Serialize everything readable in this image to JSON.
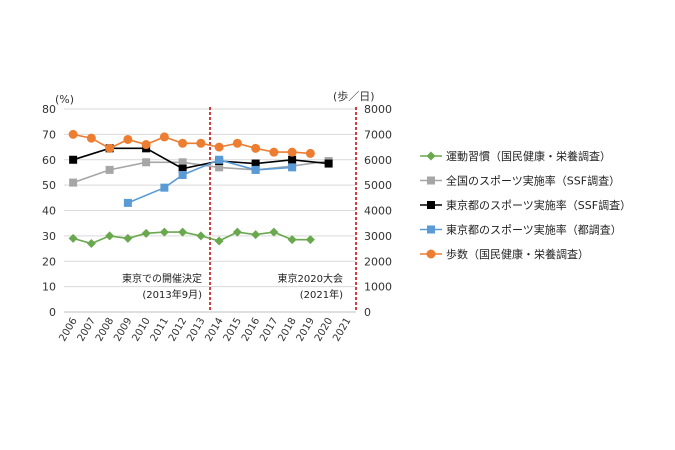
{
  "chart_data": {
    "type": "line",
    "title": "",
    "left_axis": {
      "unit_label": "(%)",
      "ylim": [
        0,
        80
      ],
      "ticks": [
        "0",
        "10",
        "20",
        "30",
        "40",
        "50",
        "60",
        "70",
        "80"
      ]
    },
    "right_axis": {
      "unit_label": "(歩／日)",
      "ylim": [
        0,
        8000
      ],
      "ticks": [
        "0",
        "1000",
        "2000",
        "3000",
        "4000",
        "5000",
        "6000",
        "7000",
        "8000"
      ]
    },
    "categories": [
      "2006",
      "2007",
      "2008",
      "2009",
      "2010",
      "2011",
      "2012",
      "2013",
      "2014",
      "2015",
      "2016",
      "2017",
      "2018",
      "2019",
      "2020",
      "2021"
    ],
    "grid": true,
    "legend_position": "right",
    "series": [
      {
        "name": "運動習慣（国民健康・栄養調査）",
        "axis": "left",
        "color": "#6aa84f",
        "marker": "diamond",
        "values": [
          29,
          27,
          30,
          29,
          31,
          31.5,
          31.5,
          30,
          28,
          31.5,
          30.5,
          31.5,
          28.5,
          28.5,
          null,
          null
        ]
      },
      {
        "name": "全国のスポーツ実施率（SSF調査）",
        "axis": "left",
        "color": "#a6a6a6",
        "marker": "square",
        "values": [
          51,
          null,
          56,
          null,
          59,
          null,
          59,
          null,
          57,
          null,
          56,
          null,
          57.5,
          null,
          59.5,
          null
        ]
      },
      {
        "name": "東京都のスポーツ実施率（SSF調査）",
        "axis": "left",
        "color": "#000000",
        "marker": "square",
        "values": [
          60,
          null,
          64.5,
          null,
          64.5,
          null,
          56.5,
          null,
          59.5,
          null,
          58.5,
          null,
          60,
          null,
          58.5,
          null
        ]
      },
      {
        "name": "東京都のスポーツ実施率（都調査）",
        "axis": "left",
        "color": "#5b9bd5",
        "marker": "square",
        "values": [
          null,
          null,
          null,
          43,
          null,
          49,
          54,
          null,
          60,
          null,
          56,
          null,
          57,
          null,
          null,
          null
        ]
      },
      {
        "name": "歩数（国民健康・栄養調査）",
        "axis": "right",
        "color": "#ed7d31",
        "marker": "circle",
        "values": [
          7000,
          6850,
          6450,
          6800,
          6600,
          6900,
          6650,
          6650,
          6500,
          6650,
          6450,
          6300,
          6300,
          6250,
          null,
          null
        ]
      }
    ],
    "markers": [
      {
        "category": "2013",
        "label_line1": "東京での開催決定",
        "label_line2": "(2013年9月)"
      },
      {
        "category": "2021",
        "label_line1": "東京2020大会",
        "label_line2": "(2021年)"
      }
    ]
  }
}
